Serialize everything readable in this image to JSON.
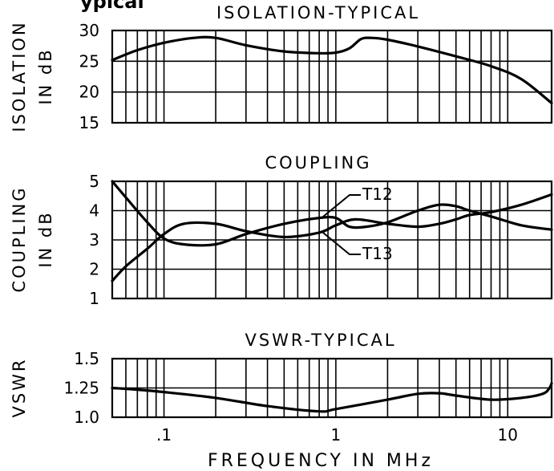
{
  "header_fragment": "ypical",
  "x_axis": {
    "label": "FREQUENCY  IN  MHz",
    "range": [
      0.05,
      18
    ],
    "scale": "log",
    "tick_values": [
      0.1,
      1,
      10
    ],
    "tick_labels": [
      ".1",
      "1",
      "10"
    ],
    "minor_gridlines": [
      0.05,
      0.06,
      0.07,
      0.08,
      0.09,
      0.1,
      0.2,
      0.3,
      0.4,
      0.5,
      0.6,
      0.7,
      0.8,
      0.9,
      1,
      2,
      3,
      4,
      5,
      6,
      7,
      8,
      9,
      10,
      18
    ]
  },
  "chart_data": [
    {
      "type": "line",
      "title": "ISOLATION-TYPICAL",
      "ylabel": [
        "ISOLATION",
        "IN dB"
      ],
      "ylim": [
        15,
        30
      ],
      "y_ticks": [
        15,
        20,
        25,
        30
      ],
      "y_tick_labels": [
        "15",
        "20",
        "25",
        "30"
      ],
      "grid": true,
      "series": [
        {
          "x": [
            0.05,
            0.07,
            0.1,
            0.15,
            0.2,
            0.3,
            0.5,
            0.8,
            1.0,
            1.2,
            1.4,
            1.6,
            2.0,
            3.0,
            5.0,
            8.0,
            12.0,
            18.0
          ],
          "values": [
            25.2,
            26.8,
            28.0,
            28.8,
            28.8,
            27.6,
            26.6,
            26.3,
            26.4,
            27.1,
            28.6,
            28.8,
            28.5,
            27.4,
            25.8,
            24.2,
            22.1,
            18.2
          ]
        }
      ]
    },
    {
      "type": "line",
      "title": "COUPLING",
      "ylabel": [
        "COUPLING",
        "IN dB"
      ],
      "ylim": [
        1,
        5
      ],
      "y_ticks": [
        1,
        2,
        3,
        4,
        5
      ],
      "y_tick_labels": [
        "1",
        "2",
        "3",
        "4",
        "5"
      ],
      "grid": true,
      "annotations": [
        "T12",
        "T13"
      ],
      "series": [
        {
          "name": "T12",
          "x": [
            0.05,
            0.06,
            0.08,
            0.1,
            0.13,
            0.2,
            0.3,
            0.5,
            0.8,
            1.0,
            1.3,
            2.0,
            3.0,
            4.0,
            5.0,
            6.0,
            8.0,
            12.0,
            18.0
          ],
          "values": [
            1.6,
            2.1,
            2.7,
            3.2,
            3.55,
            3.55,
            3.3,
            3.1,
            3.25,
            3.5,
            3.7,
            3.55,
            3.45,
            3.55,
            3.7,
            3.85,
            3.95,
            4.2,
            4.55
          ]
        },
        {
          "name": "T13",
          "x": [
            0.05,
            0.06,
            0.08,
            0.1,
            0.13,
            0.2,
            0.3,
            0.5,
            0.8,
            1.0,
            1.2,
            1.5,
            2.0,
            3.0,
            4.0,
            5.0,
            6.0,
            8.0,
            12.0,
            18.0
          ],
          "values": [
            5.0,
            4.45,
            3.6,
            3.05,
            2.85,
            2.85,
            3.2,
            3.55,
            3.75,
            3.75,
            3.45,
            3.45,
            3.6,
            4.0,
            4.2,
            4.15,
            4.0,
            3.8,
            3.5,
            3.35
          ]
        }
      ]
    },
    {
      "type": "line",
      "title": "VSWR-TYPICAL",
      "ylabel": [
        "VSWR"
      ],
      "ylim": [
        1.0,
        1.5
      ],
      "y_ticks": [
        1.0,
        1.25,
        1.5
      ],
      "y_tick_labels": [
        "1.0",
        "1.25",
        "1.5"
      ],
      "grid": true,
      "series": [
        {
          "x": [
            0.05,
            0.07,
            0.1,
            0.2,
            0.4,
            0.8,
            1.0,
            2.0,
            3.0,
            4.0,
            5.0,
            8.0,
            12.0,
            16.0,
            17.5,
            18.0
          ],
          "values": [
            1.25,
            1.235,
            1.215,
            1.165,
            1.095,
            1.05,
            1.07,
            1.15,
            1.2,
            1.205,
            1.185,
            1.15,
            1.165,
            1.2,
            1.25,
            1.29
          ]
        }
      ]
    }
  ]
}
